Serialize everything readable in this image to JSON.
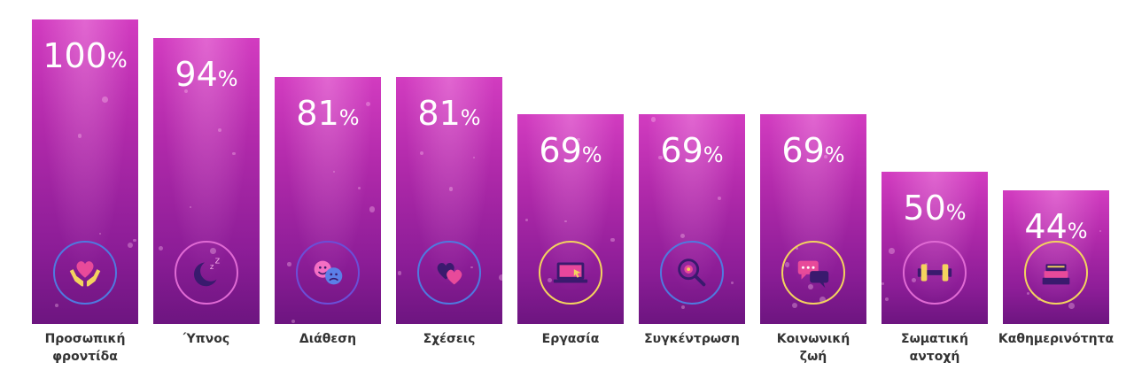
{
  "chart_data": {
    "type": "bar",
    "categories": [
      "Προσωπική\nφροντίδα",
      "Ύπνος",
      "Διάθεση",
      "Σχέσεις",
      "Εργασία",
      "Συγκέντρωση",
      "Κοινωνική\nζωή",
      "Σωματική\nαντοχή",
      "Καθημερινότητα"
    ],
    "values": [
      100,
      94,
      81,
      81,
      69,
      69,
      69,
      50,
      44
    ],
    "value_suffix": "%",
    "ylim": [
      0,
      100
    ],
    "grid": false,
    "icons": [
      "heart-hands-icon",
      "moon-sleep-icon",
      "mood-faces-icon",
      "hearts-icon",
      "laptop-icon",
      "focus-search-icon",
      "chat-bubbles-icon",
      "dumbbell-icon",
      "books-icon"
    ],
    "colors": {
      "bar_top": "#d23cc0",
      "bar_bottom": "#6d1580",
      "value_text": "#ffffff",
      "label_text": "#333333",
      "ring_yellow": "#f4d35e",
      "ring_purple": "#6b4fd8",
      "ring_pink": "#e06ad4",
      "ring_blue": "#4f7ae0"
    }
  }
}
